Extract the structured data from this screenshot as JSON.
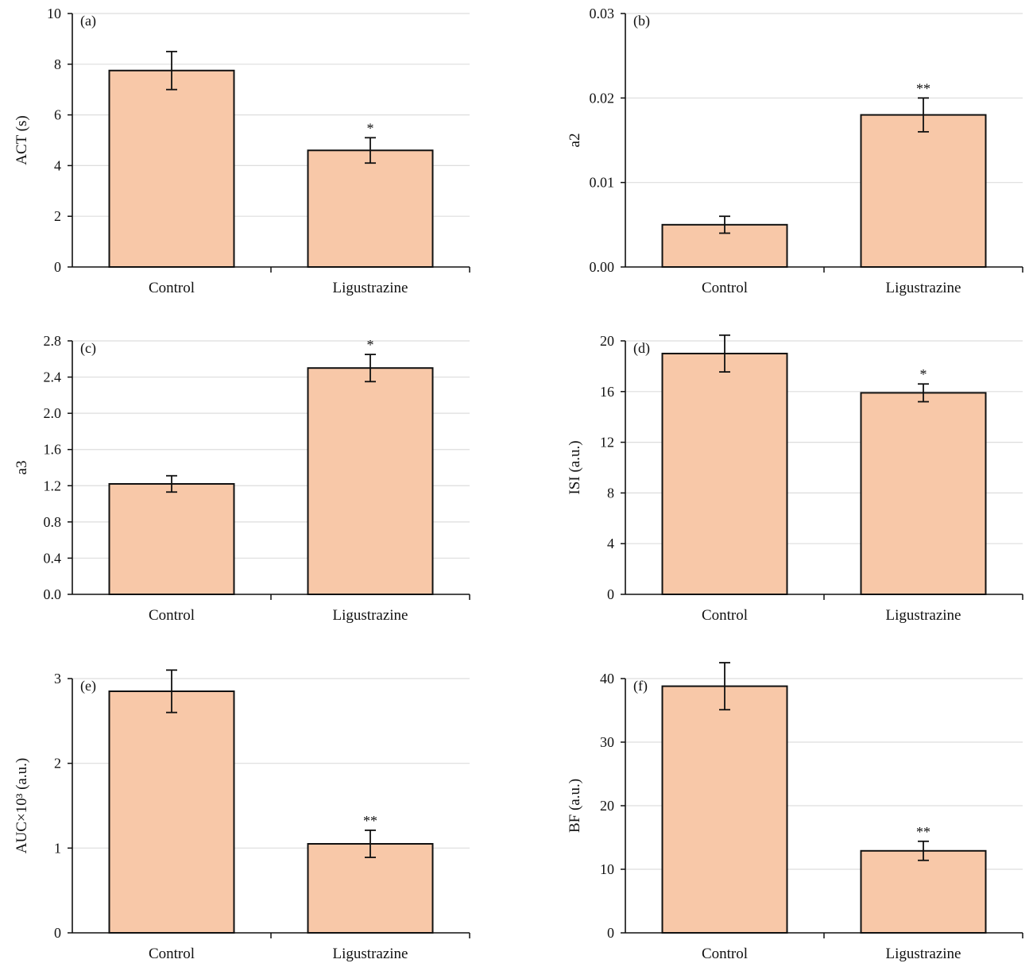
{
  "styles": {
    "bar_fill": "#f8c8a8",
    "bar_stroke": "#111111",
    "grid_color": "#dddddd",
    "axis_color": "#111111"
  },
  "chart_data": [
    {
      "type": "bar",
      "panel_label": "(a)",
      "ylabel": "ACT (s)",
      "categories": [
        "Control",
        "Ligustrazine"
      ],
      "values": [
        7.75,
        4.6
      ],
      "errors": [
        0.75,
        0.5
      ],
      "significance": [
        "",
        "*"
      ],
      "ylim": [
        0,
        10
      ],
      "yticks": [
        "0",
        "2",
        "4",
        "6",
        "8",
        "10"
      ],
      "grid": true
    },
    {
      "type": "bar",
      "panel_label": "(b)",
      "ylabel": "a2",
      "categories": [
        "Control",
        "Ligustrazine"
      ],
      "values": [
        0.005,
        0.018
      ],
      "errors": [
        0.001,
        0.002
      ],
      "significance": [
        "",
        "**"
      ],
      "ylim": [
        0,
        0.03
      ],
      "yticks": [
        "0.00",
        "0.01",
        "0.02",
        "0.03"
      ],
      "grid": true
    },
    {
      "type": "bar",
      "panel_label": "(c)",
      "ylabel": "a3",
      "categories": [
        "Control",
        "Ligustrazine"
      ],
      "values": [
        1.22,
        2.5
      ],
      "errors": [
        0.09,
        0.15
      ],
      "significance": [
        "",
        "*"
      ],
      "ylim": [
        0,
        2.8
      ],
      "yticks": [
        "0.0",
        "0.4",
        "0.8",
        "1.2",
        "1.6",
        "2.0",
        "2.4",
        "2.8"
      ],
      "grid": true
    },
    {
      "type": "bar",
      "panel_label": "(d)",
      "ylabel": "ISI (a.u.)",
      "categories": [
        "Control",
        "Ligustrazine"
      ],
      "values": [
        19.0,
        15.9
      ],
      "errors": [
        1.45,
        0.7
      ],
      "significance": [
        "",
        "*"
      ],
      "ylim": [
        0,
        20
      ],
      "yticks": [
        "0",
        "4",
        "8",
        "12",
        "16",
        "20"
      ],
      "grid": true
    },
    {
      "type": "bar",
      "panel_label": "(e)",
      "ylabel": "AUC×10³ (a.u.)",
      "categories": [
        "Control",
        "Ligustrazine"
      ],
      "values": [
        2.85,
        1.05
      ],
      "errors": [
        0.25,
        0.16
      ],
      "significance": [
        "",
        "**"
      ],
      "ylim": [
        0,
        3
      ],
      "yticks": [
        "0",
        "1",
        "2",
        "3"
      ],
      "grid": true
    },
    {
      "type": "bar",
      "panel_label": "(f)",
      "ylabel": "BF (a.u.)",
      "categories": [
        "Control",
        "Ligustrazine"
      ],
      "values": [
        38.8,
        12.9
      ],
      "errors": [
        3.7,
        1.5
      ],
      "significance": [
        "",
        "**"
      ],
      "ylim": [
        0,
        40
      ],
      "yticks": [
        "0",
        "10",
        "20",
        "30",
        "40"
      ],
      "grid": true
    }
  ]
}
